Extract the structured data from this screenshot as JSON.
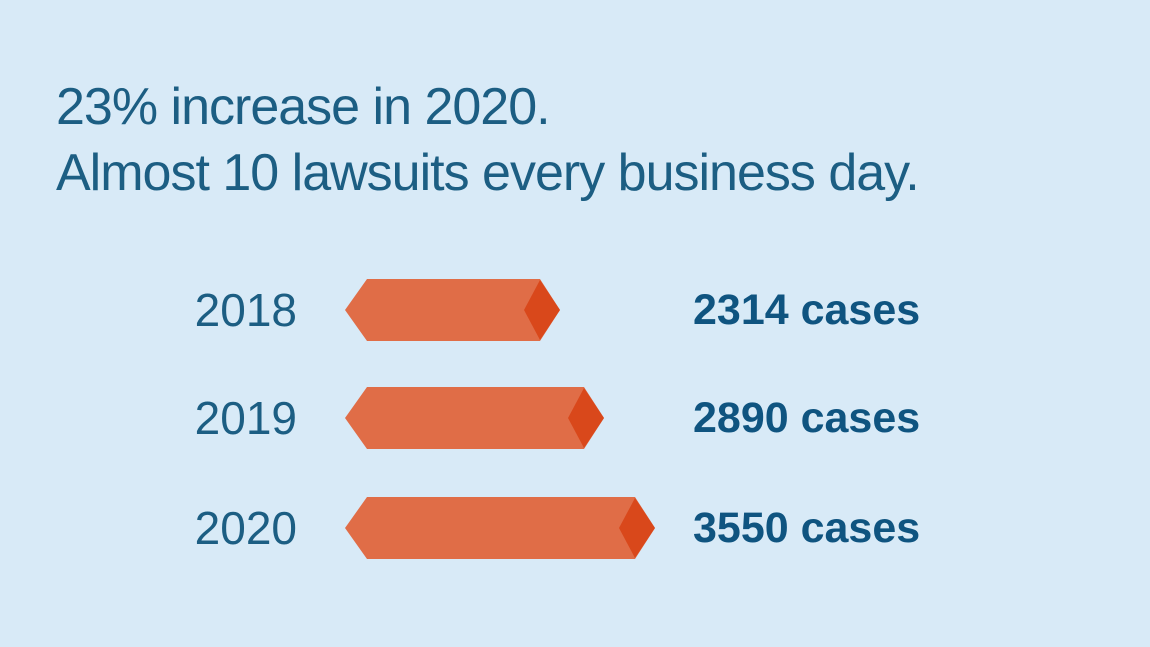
{
  "title": {
    "line1": "23% increase in 2020.",
    "line2": "Almost 10 lawsuits every business day."
  },
  "rows": [
    {
      "year": "2018",
      "value_label": "2314 cases"
    },
    {
      "year": "2019",
      "value_label": "2890 cases"
    },
    {
      "year": "2020",
      "value_label": "3550 cases"
    }
  ],
  "chart_data": {
    "type": "bar",
    "orientation": "horizontal",
    "title": "23% increase in 2020. Almost 10 lawsuits every business day.",
    "categories": [
      "2018",
      "2019",
      "2020"
    ],
    "values": [
      2314,
      2890,
      3550
    ],
    "unit": "cases",
    "legend": "none",
    "grid": false,
    "axes_labels": "none",
    "colors": {
      "background": "#D8EAF7",
      "bar": "#E06D47",
      "bar_tip": "#D9481B",
      "title_text": "#1C5E83",
      "year_text": "#1C5E83",
      "value_text": "#0F5480"
    }
  }
}
